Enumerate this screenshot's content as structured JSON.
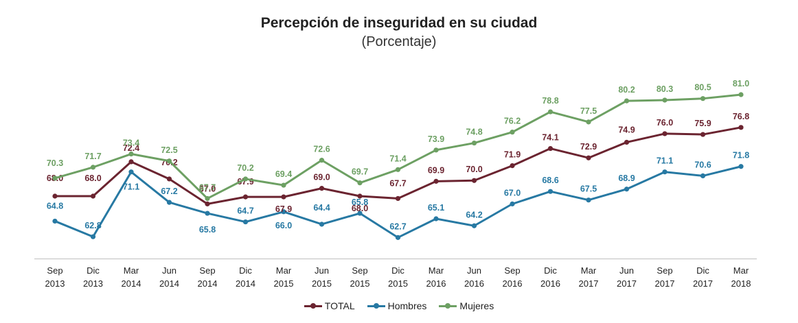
{
  "chart_data": {
    "type": "line",
    "title": "Percepción de inseguridad en su ciudad",
    "subtitle": "(Porcentaje)",
    "xlabel": "",
    "ylabel": "",
    "ylim": [
      58,
      84
    ],
    "grid": false,
    "legend_position": "bottom-center",
    "categories": [
      [
        "Sep",
        "2013"
      ],
      [
        "Dic",
        "2013"
      ],
      [
        "Mar",
        "2014"
      ],
      [
        "Jun",
        "2014"
      ],
      [
        "Sep",
        "2014"
      ],
      [
        "Dic",
        "2014"
      ],
      [
        "Mar",
        "2015"
      ],
      [
        "Jun",
        "2015"
      ],
      [
        "Sep",
        "2015"
      ],
      [
        "Dic",
        "2015"
      ],
      [
        "Mar",
        "2016"
      ],
      [
        "Jun",
        "2016"
      ],
      [
        "Sep",
        "2016"
      ],
      [
        "Dic",
        "2016"
      ],
      [
        "Mar",
        "2017"
      ],
      [
        "Jun",
        "2017"
      ],
      [
        "Sep",
        "2017"
      ],
      [
        "Dic",
        "2017"
      ],
      [
        "Mar",
        "2018"
      ]
    ],
    "series": [
      {
        "name": "TOTAL",
        "color": "#6b2430",
        "values": [
          68.0,
          68.0,
          72.4,
          70.2,
          67.0,
          67.9,
          67.9,
          69.0,
          68.0,
          67.7,
          69.9,
          70.0,
          71.9,
          74.1,
          72.9,
          74.9,
          76.0,
          75.9,
          76.8
        ],
        "labels": [
          "68.0",
          "68.0",
          "72.4",
          "70.2",
          "67.0",
          "67.9",
          "67.9",
          "69.0",
          "68.0",
          "67.7",
          "69.9",
          "70.0",
          "71.9",
          "74.1",
          "72.9",
          "74.9",
          "76.0",
          "75.9",
          "76.8"
        ]
      },
      {
        "name": "Hombres",
        "color": "#2779a3",
        "values": [
          64.8,
          62.8,
          71.1,
          67.2,
          65.8,
          64.7,
          66.0,
          64.4,
          65.8,
          62.7,
          65.1,
          64.2,
          67.0,
          68.6,
          67.5,
          68.9,
          71.1,
          70.6,
          71.8
        ],
        "labels": [
          "64.8",
          "62.8",
          "71.1",
          "67.2",
          "65.8",
          "64.7",
          "66.0",
          "64.4",
          "65.8",
          "62.7",
          "65.1",
          "64.2",
          "67.0",
          "68.6",
          "67.5",
          "68.9",
          "71.1",
          "70.6",
          "71.8"
        ]
      },
      {
        "name": "Mujeres",
        "color": "#6da063",
        "values": [
          70.3,
          71.7,
          73.4,
          72.5,
          67.7,
          70.2,
          69.4,
          72.6,
          69.7,
          71.4,
          73.9,
          74.8,
          76.2,
          78.8,
          77.5,
          80.2,
          80.3,
          80.5,
          81.0
        ],
        "labels": [
          "70.3",
          "71.7",
          "73.4",
          "72.5",
          "67.7",
          "70.2",
          "69.4",
          "72.6",
          "69.7",
          "71.4",
          "73.9",
          "74.8",
          "76.2",
          "78.8",
          "77.5",
          "80.2",
          "80.3",
          "80.5",
          "81.0"
        ]
      }
    ]
  }
}
